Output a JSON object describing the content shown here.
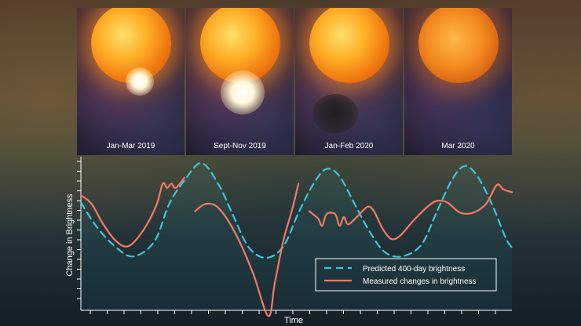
{
  "panels": [
    {
      "label": "Jan-Mar 2019"
    },
    {
      "label": "Sept-Nov  2019"
    },
    {
      "label": "Jan-Feb 2020"
    },
    {
      "label": "Mar 2020"
    }
  ],
  "chart_data": {
    "type": "line",
    "xlabel": "Time",
    "ylabel": "Change in Brightness",
    "legend_position": "bottom-right",
    "grid": false,
    "xlim": [
      0,
      100
    ],
    "ylim": [
      0,
      100
    ],
    "series": [
      {
        "name": "Predicted 400-day brightness",
        "color": "#3ec6d6",
        "style": "dashed",
        "segments": [
          [
            [
              0,
              74
            ],
            [
              3.5,
              58
            ],
            [
              7.5,
              45
            ],
            [
              12,
              37
            ],
            [
              17,
              47
            ],
            [
              20.5,
              73
            ],
            [
              24,
              89
            ],
            [
              28,
              101
            ],
            [
              32,
              86
            ],
            [
              35.5,
              64
            ],
            [
              39,
              43
            ],
            [
              43,
              36
            ],
            [
              47,
              44
            ],
            [
              50.5,
              67
            ],
            [
              54,
              87
            ],
            [
              57,
              97
            ],
            [
              60,
              92
            ],
            [
              63.5,
              73
            ],
            [
              67,
              54
            ],
            [
              70.5,
              40
            ],
            [
              74.5,
              37
            ],
            [
              79,
              45
            ],
            [
              82.5,
              67
            ],
            [
              86,
              89
            ],
            [
              89,
              99
            ],
            [
              92,
              92
            ],
            [
              95.5,
              72
            ],
            [
              98.5,
              50
            ],
            [
              100,
              43
            ]
          ]
        ]
      },
      {
        "name": "Measured changes in brightness",
        "color": "#f47a64",
        "style": "solid",
        "segments": [
          [
            [
              0,
              79
            ],
            [
              2.5,
              73
            ],
            [
              5,
              60
            ],
            [
              8,
              48
            ],
            [
              11,
              44
            ],
            [
              14.5,
              55
            ],
            [
              17.5,
              72
            ],
            [
              19,
              87
            ],
            [
              20,
              84
            ],
            [
              21,
              87
            ],
            [
              22,
              84
            ],
            [
              24,
              91
            ]
          ],
          [
            [
              26.5,
              68
            ],
            [
              29,
              73
            ],
            [
              32,
              70
            ],
            [
              36,
              52
            ],
            [
              40,
              25
            ],
            [
              43.5,
              -4
            ],
            [
              45,
              19
            ],
            [
              47,
              48
            ],
            [
              49,
              69
            ],
            [
              50.5,
              87
            ]
          ],
          [
            [
              53,
              68
            ],
            [
              55,
              63
            ],
            [
              56,
              58
            ],
            [
              57,
              66
            ],
            [
              59,
              66
            ],
            [
              60,
              58
            ],
            [
              61,
              64
            ],
            [
              62,
              59
            ],
            [
              64,
              64
            ],
            [
              66.5,
              71
            ],
            [
              68,
              68
            ],
            [
              70,
              56
            ],
            [
              72,
              49
            ],
            [
              74,
              51
            ],
            [
              77,
              61
            ],
            [
              80,
              70
            ],
            [
              82.5,
              75
            ],
            [
              85,
              74
            ],
            [
              88,
              67
            ],
            [
              91,
              67
            ],
            [
              94,
              73
            ],
            [
              96.5,
              86
            ],
            [
              98,
              83
            ],
            [
              100,
              81
            ]
          ]
        ]
      }
    ]
  }
}
